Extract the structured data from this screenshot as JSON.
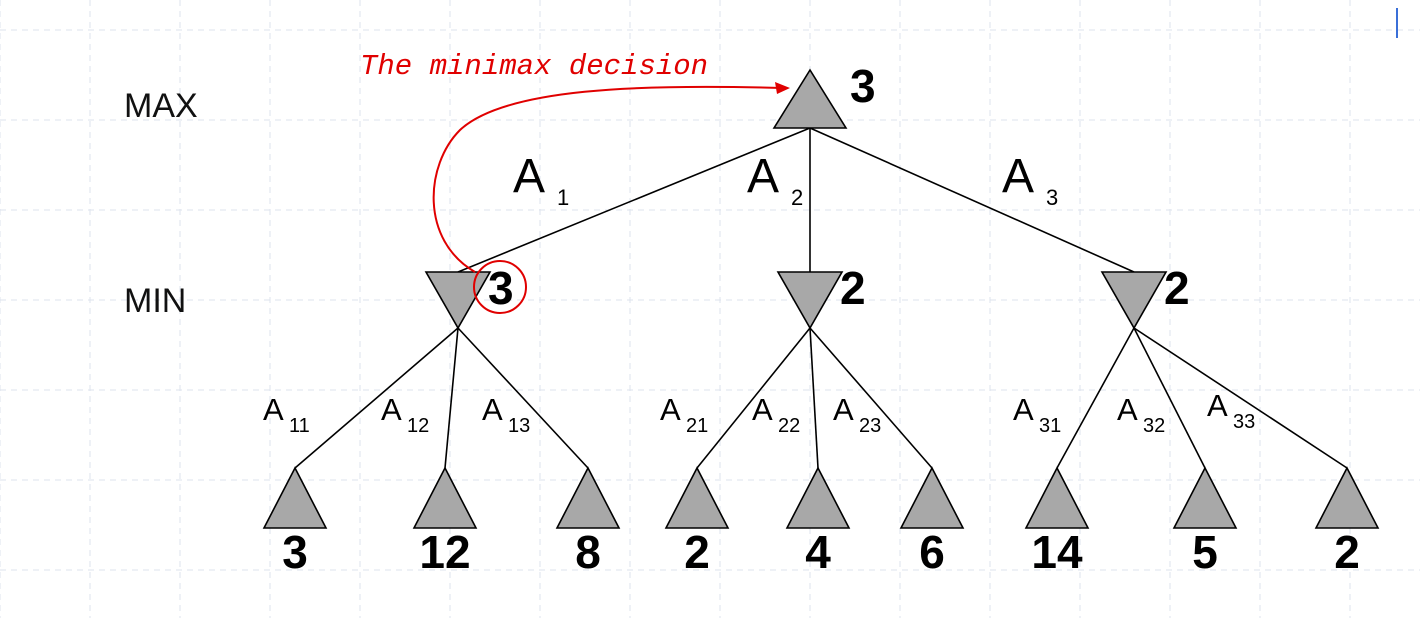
{
  "levels": {
    "max": "MAX",
    "min": "MIN"
  },
  "annotation": {
    "text": "The minimax decision",
    "color": "#e00000"
  },
  "root": {
    "value": "3"
  },
  "branches": [
    {
      "label": "A",
      "sub": "1"
    },
    {
      "label": "A",
      "sub": "2"
    },
    {
      "label": "A",
      "sub": "3"
    }
  ],
  "min_nodes": [
    {
      "value": "3",
      "highlighted": true,
      "edges": [
        {
          "label": "A",
          "sub": "11"
        },
        {
          "label": "A",
          "sub": "12"
        },
        {
          "label": "A",
          "sub": "13"
        }
      ],
      "leaves": [
        "3",
        "12",
        "8"
      ]
    },
    {
      "value": "2",
      "highlighted": false,
      "edges": [
        {
          "label": "A",
          "sub": "21"
        },
        {
          "label": "A",
          "sub": "22"
        },
        {
          "label": "A",
          "sub": "23"
        }
      ],
      "leaves": [
        "2",
        "4",
        "6"
      ]
    },
    {
      "value": "2",
      "highlighted": false,
      "edges": [
        {
          "label": "A",
          "sub": "31"
        },
        {
          "label": "A",
          "sub": "32"
        },
        {
          "label": "A",
          "sub": "33"
        }
      ],
      "leaves": [
        "14",
        "5",
        "2"
      ]
    }
  ],
  "colors": {
    "node_fill": "#a8a8a8",
    "annotation": "#e00000",
    "grid": "#dde3ee"
  }
}
